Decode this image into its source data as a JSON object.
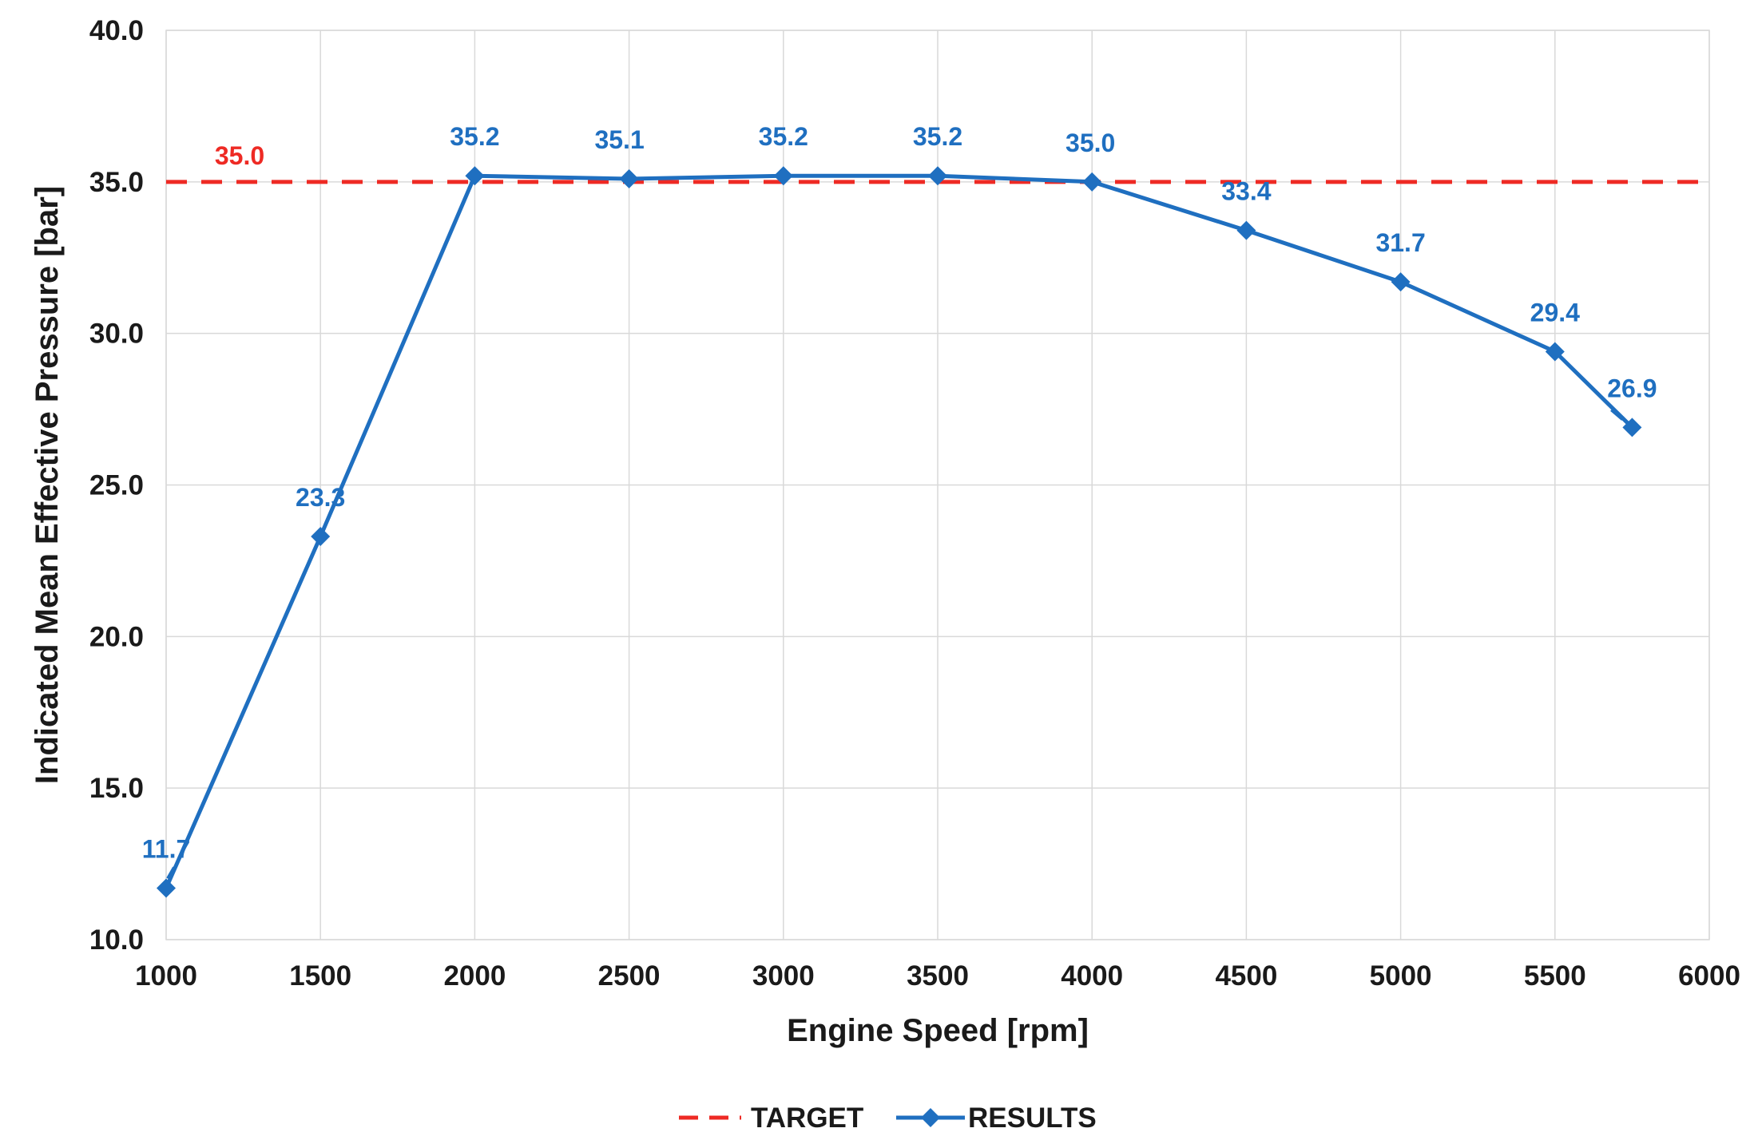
{
  "chart_data": {
    "type": "line",
    "xlabel": "Engine Speed [rpm]",
    "ylabel": "Indicated Mean Effective Pressure [bar]",
    "xlim": [
      1000,
      6000
    ],
    "ylim": [
      10,
      40
    ],
    "x_ticks": [
      "1000",
      "1500",
      "2000",
      "2500",
      "3000",
      "3500",
      "4000",
      "4500",
      "5000",
      "5500",
      "6000"
    ],
    "y_ticks": [
      "10.0",
      "15.0",
      "20.0",
      "25.0",
      "30.0",
      "35.0",
      "40.0"
    ],
    "grid": true,
    "legend_position": "bottom-center",
    "series": [
      {
        "name": "TARGET",
        "style": "dashed",
        "color": "#ee2a24",
        "value": 35.0,
        "label": "35.0"
      },
      {
        "name": "RESULTS",
        "style": "solid-diamond",
        "color": "#1f6fc0",
        "x": [
          1000,
          1500,
          2000,
          2500,
          3000,
          3500,
          4000,
          4500,
          5000,
          5500,
          5750
        ],
        "y": [
          11.7,
          23.3,
          35.2,
          35.1,
          35.2,
          35.2,
          35.0,
          33.4,
          31.7,
          29.4,
          26.9
        ],
        "labels": [
          "11.7",
          "23.3",
          "35.2",
          "35.1",
          "35.2",
          "35.2",
          "35.0",
          "33.4",
          "31.7",
          "29.4",
          "26.9"
        ]
      }
    ]
  }
}
